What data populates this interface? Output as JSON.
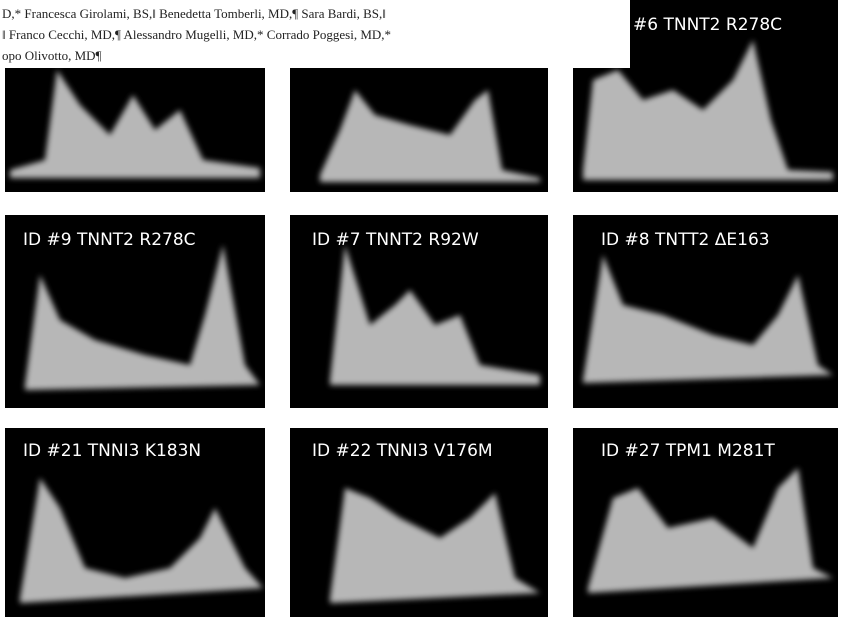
{
  "authors": {
    "lines": [
      "D,* Francesca Girolami, BS,‖ Benedetta Tomberli, MD,¶ Sara Bardi, BS,‖",
      "‖ Franco Cecchi, MD,¶ Alessandro Mugelli, MD,* Corrado Poggesi, MD,*",
      "opo Olivotto, MD¶"
    ]
  },
  "panels": {
    "labels": [
      "#6  TNNT2 R278C",
      "ID #9  TNNT2 R278C",
      "ID #7 TNNT2 R92W",
      "ID #8 TNTT2 ΔE163",
      "ID #21 TNNI3 K183N",
      "ID #22 TNNI3 V176M",
      "ID #27 TPM1 M281T"
    ]
  }
}
